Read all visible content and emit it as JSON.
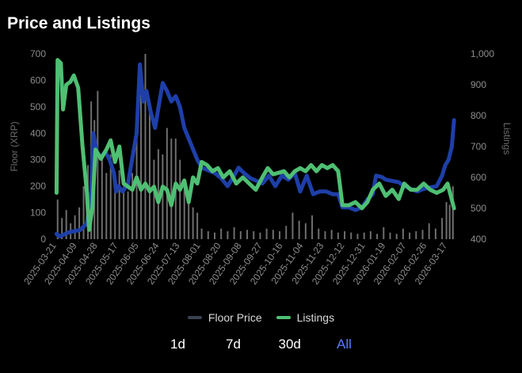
{
  "header": {
    "title": "Price and Listings"
  },
  "legend": {
    "floor_label": "Floor Price",
    "listings_label": "Listings"
  },
  "ranges": [
    {
      "label": "1d",
      "active": false
    },
    {
      "label": "7d",
      "active": false
    },
    {
      "label": "30d",
      "active": false
    },
    {
      "label": "All",
      "active": true
    }
  ],
  "colors": {
    "floor": "#1e3fa8",
    "floor_legend": "#3a4150",
    "listings": "#4fbf73",
    "volume_bars": "#8a8a8a",
    "axis_text": "#8c8c8c",
    "active_range": "#5a7bff"
  },
  "chart_data": {
    "type": "line",
    "yleft": {
      "label": "Floor (XRP)",
      "lim": [
        0,
        700
      ],
      "ticks": [
        0,
        100,
        200,
        300,
        400,
        500,
        600,
        700
      ]
    },
    "yright": {
      "label": "Listings",
      "lim": [
        400,
        1000
      ],
      "ticks": [
        "400",
        "500",
        "600",
        "700",
        "800",
        "900",
        "1,000"
      ],
      "tick_values": [
        400,
        500,
        600,
        700,
        800,
        900,
        1000
      ]
    },
    "x_ticks": [
      "2025-03-21",
      "2025-04-09",
      "2025-04-28",
      "2025-05-17",
      "2025-06-05",
      "2025-06-24",
      "2025-07-13",
      "2025-08-01",
      "2025-08-20",
      "2025-09-08",
      "2025-09-27",
      "2025-10-16",
      "2025-11-04",
      "2025-11-23",
      "2025-12-12",
      "2025-12-31",
      "2026-01-19",
      "2026-02-07",
      "2026-02-26",
      "2026-03-17"
    ],
    "x_range": [
      "2025-03-20",
      "2026-03-28"
    ],
    "grid": false,
    "legend_position": "bottom",
    "series": [
      {
        "name": "Floor Price",
        "axis": "left",
        "points": [
          [
            "2025-03-21",
            20
          ],
          [
            "2025-03-24",
            10
          ],
          [
            "2025-03-28",
            18
          ],
          [
            "2025-04-01",
            25
          ],
          [
            "2025-04-06",
            30
          ],
          [
            "2025-04-12",
            35
          ],
          [
            "2025-04-18",
            60
          ],
          [
            "2025-04-22",
            180
          ],
          [
            "2025-04-24",
            400
          ],
          [
            "2025-04-27",
            330
          ],
          [
            "2025-05-01",
            310
          ],
          [
            "2025-05-05",
            330
          ],
          [
            "2025-05-09",
            300
          ],
          [
            "2025-05-13",
            250
          ],
          [
            "2025-05-15",
            180
          ],
          [
            "2025-05-17",
            200
          ],
          [
            "2025-05-21",
            180
          ],
          [
            "2025-05-26",
            210
          ],
          [
            "2025-05-31",
            330
          ],
          [
            "2025-06-03",
            400
          ],
          [
            "2025-06-06",
            660
          ],
          [
            "2025-06-09",
            520
          ],
          [
            "2025-06-12",
            560
          ],
          [
            "2025-06-16",
            480
          ],
          [
            "2025-06-20",
            420
          ],
          [
            "2025-06-24",
            520
          ],
          [
            "2025-06-27",
            590
          ],
          [
            "2025-07-01",
            560
          ],
          [
            "2025-07-05",
            520
          ],
          [
            "2025-07-09",
            540
          ],
          [
            "2025-07-13",
            500
          ],
          [
            "2025-07-17",
            420
          ],
          [
            "2025-07-21",
            380
          ],
          [
            "2025-07-25",
            340
          ],
          [
            "2025-07-29",
            300
          ],
          [
            "2025-08-02",
            270
          ],
          [
            "2025-08-08",
            260
          ],
          [
            "2025-08-14",
            250
          ],
          [
            "2025-08-20",
            230
          ],
          [
            "2025-08-26",
            200
          ],
          [
            "2025-09-01",
            240
          ],
          [
            "2025-09-05",
            270
          ],
          [
            "2025-09-10",
            250
          ],
          [
            "2025-09-16",
            230
          ],
          [
            "2025-09-22",
            220
          ],
          [
            "2025-09-27",
            210
          ],
          [
            "2025-10-03",
            240
          ],
          [
            "2025-10-09",
            200
          ],
          [
            "2025-10-15",
            240
          ],
          [
            "2025-10-21",
            225
          ],
          [
            "2025-10-27",
            250
          ],
          [
            "2025-11-01",
            180
          ],
          [
            "2025-11-07",
            240
          ],
          [
            "2025-11-13",
            170
          ],
          [
            "2025-11-19",
            180
          ],
          [
            "2025-11-25",
            180
          ],
          [
            "2025-12-01",
            170
          ],
          [
            "2025-12-06",
            170
          ],
          [
            "2025-12-10",
            120
          ],
          [
            "2025-12-16",
            120
          ],
          [
            "2025-12-22",
            110
          ],
          [
            "2025-12-28",
            120
          ],
          [
            "2026-01-02",
            150
          ],
          [
            "2026-01-07",
            170
          ],
          [
            "2026-01-10",
            240
          ],
          [
            "2026-01-15",
            235
          ],
          [
            "2026-01-19",
            225
          ],
          [
            "2026-01-25",
            220
          ],
          [
            "2026-01-31",
            215
          ],
          [
            "2026-02-05",
            200
          ],
          [
            "2026-02-11",
            190
          ],
          [
            "2026-02-17",
            180
          ],
          [
            "2026-02-23",
            190
          ],
          [
            "2026-03-01",
            195
          ],
          [
            "2026-03-07",
            200
          ],
          [
            "2026-03-12",
            240
          ],
          [
            "2026-03-15",
            280
          ],
          [
            "2026-03-18",
            300
          ],
          [
            "2026-03-21",
            350
          ],
          [
            "2026-03-23",
            450
          ]
        ]
      },
      {
        "name": "Listings",
        "axis": "right",
        "points": [
          [
            "2025-03-21",
            550
          ],
          [
            "2025-03-22",
            980
          ],
          [
            "2025-03-25",
            970
          ],
          [
            "2025-03-27",
            820
          ],
          [
            "2025-03-30",
            900
          ],
          [
            "2025-04-03",
            910
          ],
          [
            "2025-04-06",
            930
          ],
          [
            "2025-04-10",
            890
          ],
          [
            "2025-04-14",
            700
          ],
          [
            "2025-04-18",
            550
          ],
          [
            "2025-04-20",
            430
          ],
          [
            "2025-04-23",
            500
          ],
          [
            "2025-04-26",
            690
          ],
          [
            "2025-05-01",
            660
          ],
          [
            "2025-05-06",
            690
          ],
          [
            "2025-05-10",
            720
          ],
          [
            "2025-05-14",
            650
          ],
          [
            "2025-05-18",
            700
          ],
          [
            "2025-05-22",
            580
          ],
          [
            "2025-05-26",
            570
          ],
          [
            "2025-05-30",
            560
          ],
          [
            "2025-06-03",
            600
          ],
          [
            "2025-06-07",
            560
          ],
          [
            "2025-06-11",
            580
          ],
          [
            "2025-06-15",
            555
          ],
          [
            "2025-06-19",
            570
          ],
          [
            "2025-06-23",
            520
          ],
          [
            "2025-06-27",
            570
          ],
          [
            "2025-07-01",
            560
          ],
          [
            "2025-07-05",
            510
          ],
          [
            "2025-07-09",
            580
          ],
          [
            "2025-07-13",
            560
          ],
          [
            "2025-07-17",
            590
          ],
          [
            "2025-07-21",
            520
          ],
          [
            "2025-07-25",
            600
          ],
          [
            "2025-07-29",
            580
          ],
          [
            "2025-08-02",
            650
          ],
          [
            "2025-08-07",
            640
          ],
          [
            "2025-08-12",
            620
          ],
          [
            "2025-08-17",
            630
          ],
          [
            "2025-08-22",
            600
          ],
          [
            "2025-08-28",
            620
          ],
          [
            "2025-09-03",
            580
          ],
          [
            "2025-09-09",
            600
          ],
          [
            "2025-09-15",
            580
          ],
          [
            "2025-09-21",
            560
          ],
          [
            "2025-09-27",
            600
          ],
          [
            "2025-10-02",
            630
          ],
          [
            "2025-10-07",
            610
          ],
          [
            "2025-10-12",
            615
          ],
          [
            "2025-10-17",
            620
          ],
          [
            "2025-10-22",
            600
          ],
          [
            "2025-10-27",
            620
          ],
          [
            "2025-11-01",
            630
          ],
          [
            "2025-11-06",
            620
          ],
          [
            "2025-11-11",
            640
          ],
          [
            "2025-11-16",
            620
          ],
          [
            "2025-11-21",
            640
          ],
          [
            "2025-11-26",
            630
          ],
          [
            "2025-12-01",
            640
          ],
          [
            "2025-12-06",
            620
          ],
          [
            "2025-12-10",
            510
          ],
          [
            "2025-12-16",
            510
          ],
          [
            "2025-12-22",
            520
          ],
          [
            "2025-12-28",
            500
          ],
          [
            "2026-01-02",
            520
          ],
          [
            "2026-01-07",
            560
          ],
          [
            "2026-01-13",
            580
          ],
          [
            "2026-01-19",
            540
          ],
          [
            "2026-01-25",
            560
          ],
          [
            "2026-01-31",
            530
          ],
          [
            "2026-02-05",
            580
          ],
          [
            "2026-02-11",
            560
          ],
          [
            "2026-02-17",
            560
          ],
          [
            "2026-02-23",
            580
          ],
          [
            "2026-03-01",
            560
          ],
          [
            "2026-03-07",
            550
          ],
          [
            "2026-03-13",
            560
          ],
          [
            "2026-03-17",
            580
          ],
          [
            "2026-03-20",
            540
          ],
          [
            "2026-03-23",
            500
          ]
        ]
      },
      {
        "name": "volume",
        "axis": "left",
        "type": "bar",
        "note_values": "daily bars (unlabeled)",
        "points": [
          [
            "2025-03-22",
            150
          ],
          [
            "2025-03-26",
            80
          ],
          [
            "2025-03-30",
            110
          ],
          [
            "2025-04-03",
            60
          ],
          [
            "2025-04-07",
            90
          ],
          [
            "2025-04-11",
            120
          ],
          [
            "2025-04-15",
            200
          ],
          [
            "2025-04-19",
            280
          ],
          [
            "2025-04-22",
            520
          ],
          [
            "2025-04-25",
            450
          ],
          [
            "2025-04-28",
            560
          ],
          [
            "2025-05-02",
            300
          ],
          [
            "2025-05-06",
            250
          ],
          [
            "2025-05-10",
            320
          ],
          [
            "2025-05-14",
            200
          ],
          [
            "2025-05-18",
            260
          ],
          [
            "2025-05-22",
            200
          ],
          [
            "2025-05-26",
            180
          ],
          [
            "2025-05-30",
            250
          ],
          [
            "2025-06-03",
            420
          ],
          [
            "2025-06-07",
            620
          ],
          [
            "2025-06-11",
            700
          ],
          [
            "2025-06-15",
            500
          ],
          [
            "2025-06-19",
            300
          ],
          [
            "2025-06-23",
            340
          ],
          [
            "2025-06-27",
            320
          ],
          [
            "2025-07-01",
            420
          ],
          [
            "2025-07-05",
            380
          ],
          [
            "2025-07-09",
            380
          ],
          [
            "2025-07-13",
            300
          ],
          [
            "2025-07-17",
            220
          ],
          [
            "2025-07-21",
            150
          ],
          [
            "2025-07-25",
            120
          ],
          [
            "2025-07-29",
            100
          ],
          [
            "2025-08-02",
            40
          ],
          [
            "2025-08-08",
            30
          ],
          [
            "2025-08-14",
            25
          ],
          [
            "2025-08-20",
            40
          ],
          [
            "2025-08-26",
            30
          ],
          [
            "2025-09-01",
            45
          ],
          [
            "2025-09-07",
            30
          ],
          [
            "2025-09-13",
            35
          ],
          [
            "2025-09-19",
            30
          ],
          [
            "2025-09-25",
            25
          ],
          [
            "2025-10-01",
            40
          ],
          [
            "2025-10-07",
            35
          ],
          [
            "2025-10-13",
            30
          ],
          [
            "2025-10-19",
            50
          ],
          [
            "2025-10-25",
            100
          ],
          [
            "2025-10-31",
            70
          ],
          [
            "2025-11-06",
            60
          ],
          [
            "2025-11-12",
            90
          ],
          [
            "2025-11-18",
            40
          ],
          [
            "2025-11-24",
            30
          ],
          [
            "2025-11-30",
            35
          ],
          [
            "2025-12-06",
            25
          ],
          [
            "2025-12-12",
            30
          ],
          [
            "2025-12-18",
            25
          ],
          [
            "2025-12-24",
            20
          ],
          [
            "2025-12-30",
            25
          ],
          [
            "2026-01-05",
            30
          ],
          [
            "2026-01-11",
            20
          ],
          [
            "2026-01-17",
            45
          ],
          [
            "2026-01-23",
            25
          ],
          [
            "2026-01-29",
            20
          ],
          [
            "2026-02-04",
            40
          ],
          [
            "2026-02-10",
            25
          ],
          [
            "2026-02-16",
            30
          ],
          [
            "2026-02-22",
            35
          ],
          [
            "2026-02-28",
            60
          ],
          [
            "2026-03-06",
            40
          ],
          [
            "2026-03-12",
            80
          ],
          [
            "2026-03-16",
            140
          ],
          [
            "2026-03-19",
            130
          ],
          [
            "2026-03-22",
            200
          ]
        ]
      }
    ]
  }
}
